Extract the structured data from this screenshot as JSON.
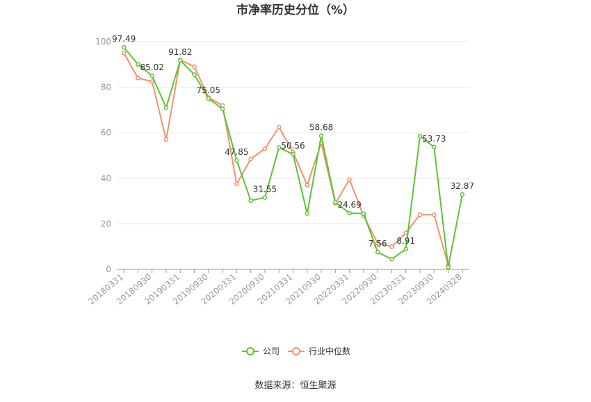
{
  "chart_data": {
    "type": "line",
    "title": "市净率历史分位（%）",
    "ylim": [
      0,
      100
    ],
    "yticks": [
      0,
      20,
      40,
      60,
      80,
      100
    ],
    "grid": true,
    "legend_position": "bottom",
    "x": [
      "20180331",
      "20180630",
      "20180930",
      "20181231",
      "20190331",
      "20190630",
      "20190930",
      "20191231",
      "20200331",
      "20200630",
      "20200930",
      "20201231",
      "20210331",
      "20210630",
      "20210930",
      "20211231",
      "20220331",
      "20220630",
      "20220930",
      "20221231",
      "20230331",
      "20230630",
      "20230930",
      "20231231",
      "20240328"
    ],
    "xtick_labels": [
      "20180331",
      "20180930",
      "20190331",
      "20190930",
      "20200331",
      "20200930",
      "20210331",
      "20210930",
      "20220331",
      "20220930",
      "20230331",
      "20230930",
      "20240328"
    ],
    "series": [
      {
        "name": "公司",
        "color": "#5cc430",
        "values": [
          97.49,
          90.0,
          85.02,
          71.0,
          91.82,
          85.5,
          75.05,
          70.5,
          47.85,
          30.2,
          31.55,
          53.5,
          50.56,
          24.5,
          58.68,
          29.5,
          24.69,
          24.5,
          7.56,
          4.5,
          8.91,
          58.5,
          53.73,
          1.0,
          32.87
        ]
      },
      {
        "name": "行业中位数",
        "color": "#f3906a",
        "values": [
          95.0,
          84.0,
          82.5,
          57.0,
          92.0,
          89.0,
          75.5,
          72.0,
          37.5,
          48.5,
          53.0,
          62.5,
          51.5,
          37.0,
          55.5,
          29.0,
          39.5,
          23.5,
          11.5,
          10.0,
          16.0,
          24.0,
          24.0,
          2.0,
          null
        ]
      }
    ],
    "data_labels": [
      {
        "index": 0,
        "text": "97.49"
      },
      {
        "index": 2,
        "text": "85.02"
      },
      {
        "index": 4,
        "text": "91.82"
      },
      {
        "index": 6,
        "text": "75.05"
      },
      {
        "index": 8,
        "text": "47.85"
      },
      {
        "index": 10,
        "text": "31.55"
      },
      {
        "index": 12,
        "text": "50.56"
      },
      {
        "index": 14,
        "text": "58.68"
      },
      {
        "index": 16,
        "text": "24.69"
      },
      {
        "index": 18,
        "text": "7.56"
      },
      {
        "index": 20,
        "text": "8.91"
      },
      {
        "index": 22,
        "text": "53.73"
      },
      {
        "index": 24,
        "text": "32.87"
      }
    ]
  },
  "legend": {
    "company": "公司",
    "industry": "行业中位数"
  },
  "source": "数据来源：恒生聚源"
}
